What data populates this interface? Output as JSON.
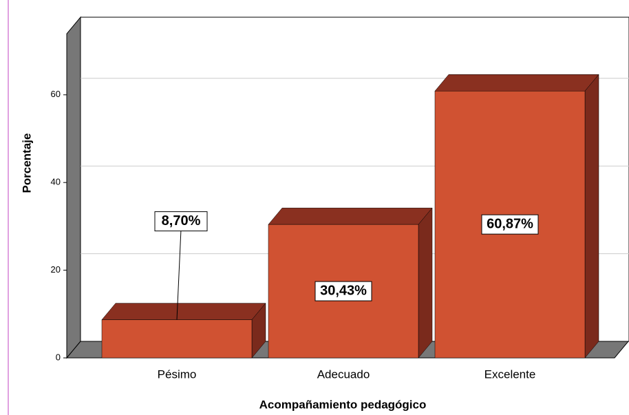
{
  "chart_data": {
    "type": "bar",
    "categories": [
      "Pésimo",
      "Adecuado",
      "Excelente"
    ],
    "values": [
      8.7,
      30.43,
      60.87
    ],
    "value_labels": [
      "8,70%",
      "30,43%",
      "60,87%"
    ],
    "color": "#d05232",
    "xlabel": "Acompañamiento pedagógico",
    "ylabel": "Porcentaje",
    "ylim": [
      0,
      74
    ],
    "yticks": [
      0,
      20,
      40,
      60
    ],
    "grid": true
  }
}
